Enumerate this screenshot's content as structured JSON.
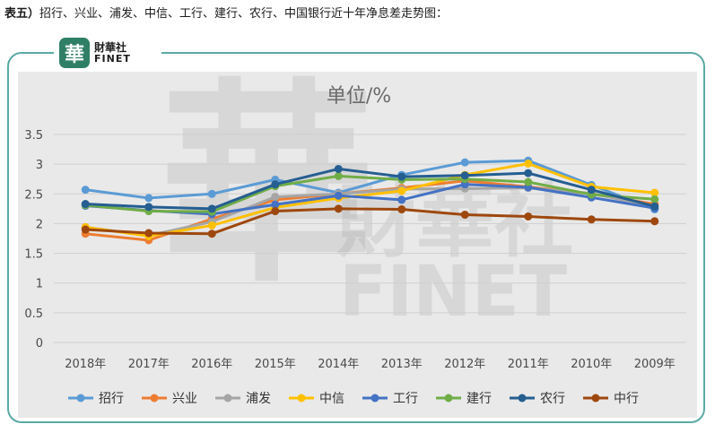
{
  "caption": {
    "label": "表五）",
    "text": "招行、兴业、浦发、中信、工行、建行、农行、中国银行近十年净息差走势图："
  },
  "logo": {
    "mark": "華",
    "name_cn": "財華社",
    "name_en": "FINET"
  },
  "watermark": {
    "mark": "華",
    "cn": "財華社",
    "en": "FINET"
  },
  "chart_data": {
    "type": "line",
    "title": "单位/%",
    "categories": [
      "2018年",
      "2017年",
      "2016年",
      "2015年",
      "2014年",
      "2013年",
      "2012年",
      "2011年",
      "2010年",
      "2009年"
    ],
    "ylim": [
      0,
      3.5
    ],
    "yticks": [
      "0",
      "0.5",
      "1",
      "1.5",
      "2",
      "2.5",
      "3",
      "3.5"
    ],
    "grid": true,
    "legend_position": "bottom",
    "series": [
      {
        "name": "招行",
        "color": "#5b9bd5",
        "values": [
          2.57,
          2.43,
          2.5,
          2.74,
          2.52,
          2.82,
          3.03,
          3.06,
          2.65,
          2.24
        ]
      },
      {
        "name": "兴业",
        "color": "#ed7d31",
        "values": [
          1.83,
          1.72,
          2.08,
          2.4,
          2.5,
          2.6,
          2.72,
          2.62,
          2.5,
          2.33
        ]
      },
      {
        "name": "浦发",
        "color": "#a5a5a5",
        "values": [
          1.94,
          1.8,
          2.03,
          2.45,
          2.5,
          2.58,
          2.59,
          2.6,
          2.51,
          2.28
        ]
      },
      {
        "name": "中信",
        "color": "#ffc000",
        "values": [
          1.94,
          1.79,
          1.97,
          2.27,
          2.43,
          2.55,
          2.82,
          3.01,
          2.62,
          2.52
        ]
      },
      {
        "name": "工行",
        "color": "#4472c4",
        "values": [
          2.3,
          2.22,
          2.16,
          2.32,
          2.47,
          2.4,
          2.66,
          2.61,
          2.44,
          2.26
        ]
      },
      {
        "name": "建行",
        "color": "#70ad47",
        "values": [
          2.31,
          2.21,
          2.2,
          2.63,
          2.8,
          2.74,
          2.75,
          2.7,
          2.49,
          2.41
        ]
      },
      {
        "name": "农行",
        "color": "#255e91",
        "values": [
          2.33,
          2.28,
          2.25,
          2.66,
          2.92,
          2.79,
          2.81,
          2.85,
          2.57,
          2.29
        ]
      },
      {
        "name": "中行",
        "color": "#9e480e",
        "values": [
          1.9,
          1.84,
          1.83,
          2.21,
          2.25,
          2.24,
          2.15,
          2.12,
          2.07,
          2.04
        ]
      }
    ]
  }
}
